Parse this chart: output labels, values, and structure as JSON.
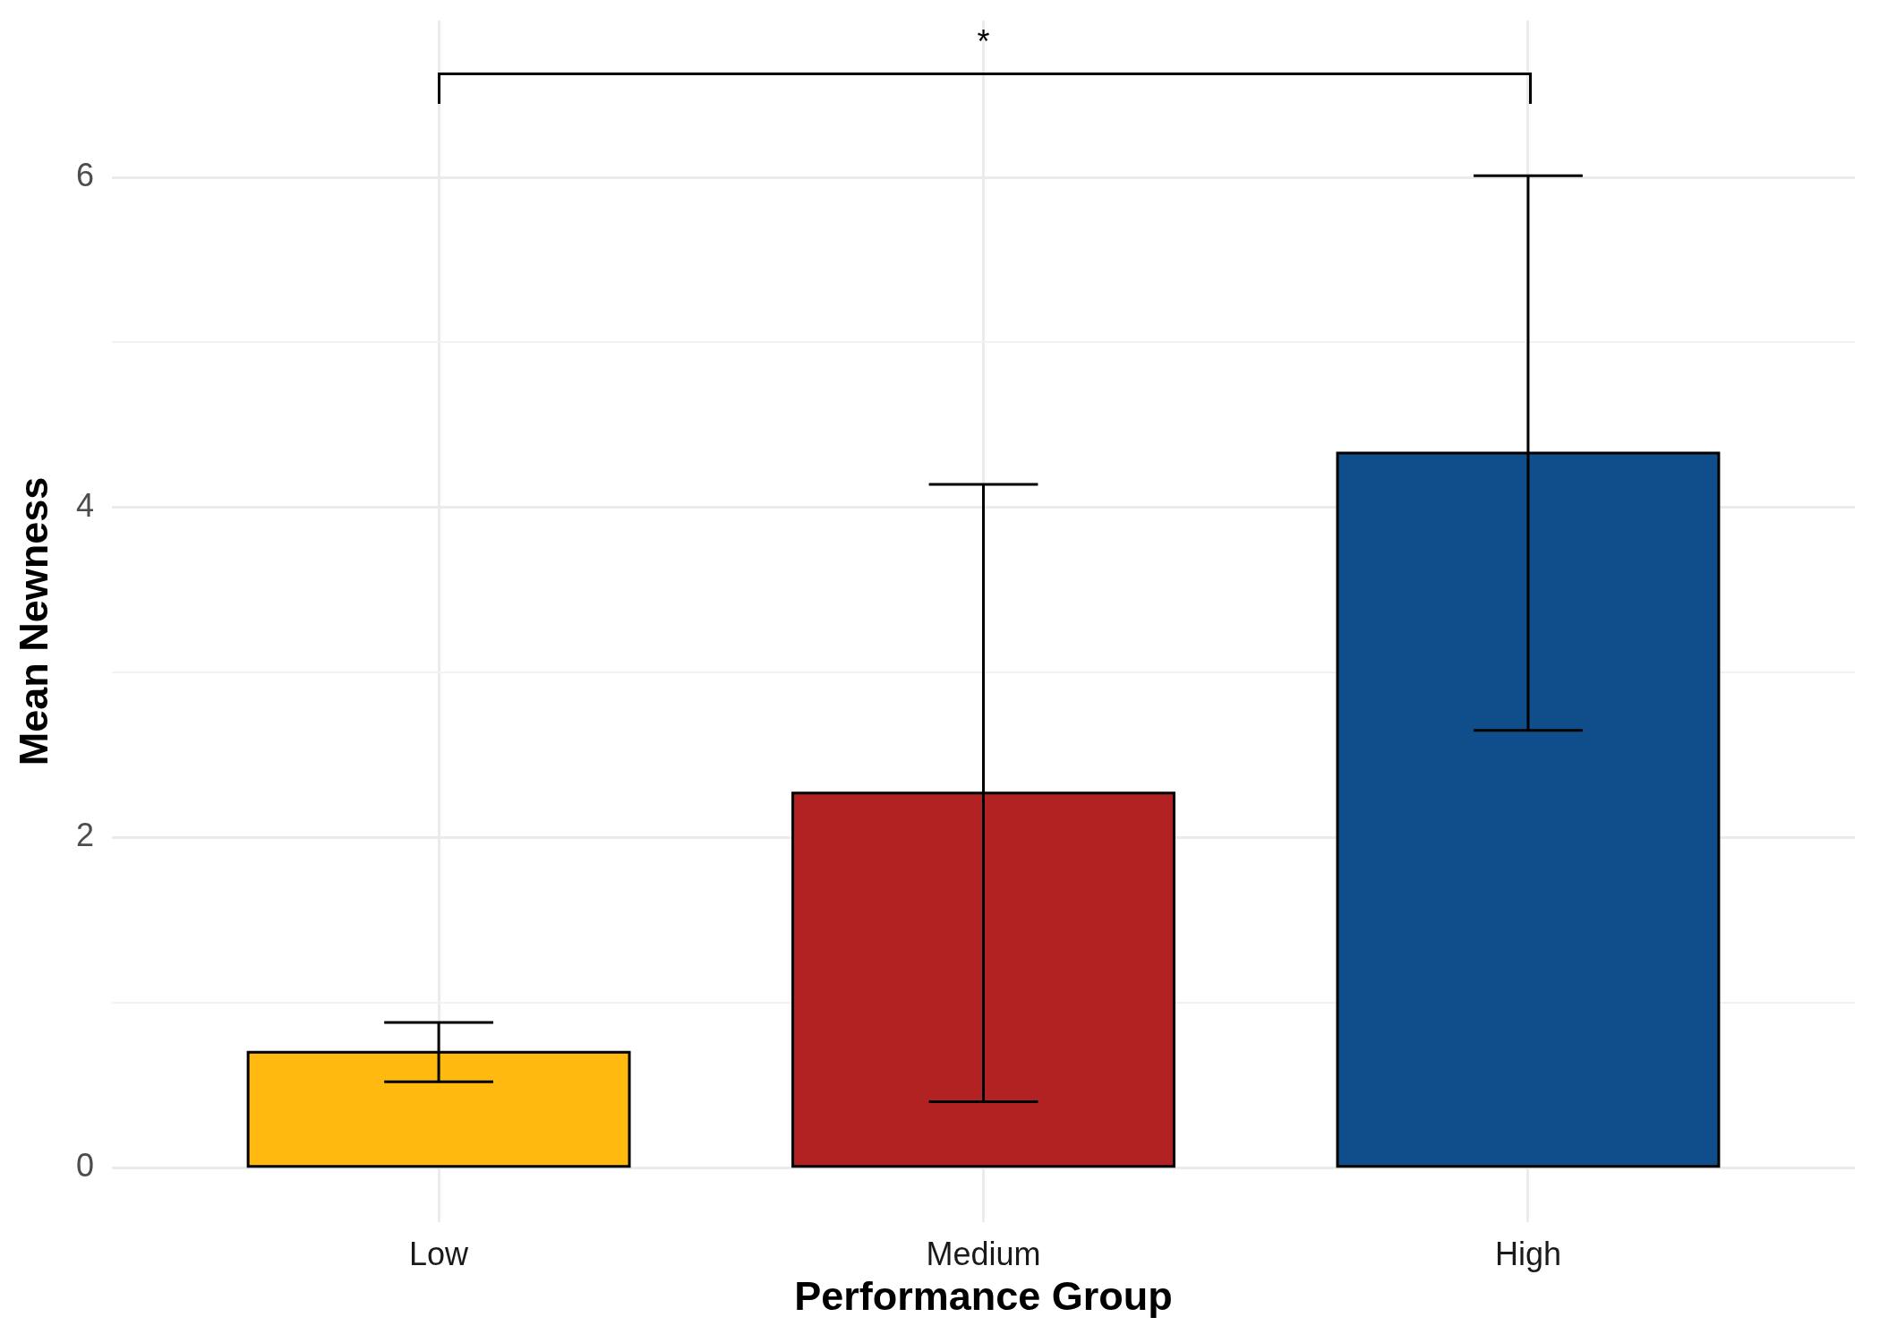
{
  "chart_data": {
    "type": "bar",
    "categories": [
      "Low",
      "Medium",
      "High"
    ],
    "values": [
      0.7,
      2.27,
      4.33
    ],
    "errors": [
      0.18,
      1.87,
      1.68
    ],
    "colors": [
      "#ffb90f",
      "#b22222",
      "#104e8b"
    ],
    "xlabel": "Performance Group",
    "ylabel": "Mean Newness",
    "ylim": [
      -0.33,
      6.95
    ],
    "yticks": [
      0,
      {
        "value": 1,
        "label": null
      },
      2,
      {
        "value": 3,
        "label": null
      },
      4,
      {
        "value": 5,
        "label": null
      },
      6
    ],
    "grid": true,
    "annotations": [
      "*"
    ]
  }
}
